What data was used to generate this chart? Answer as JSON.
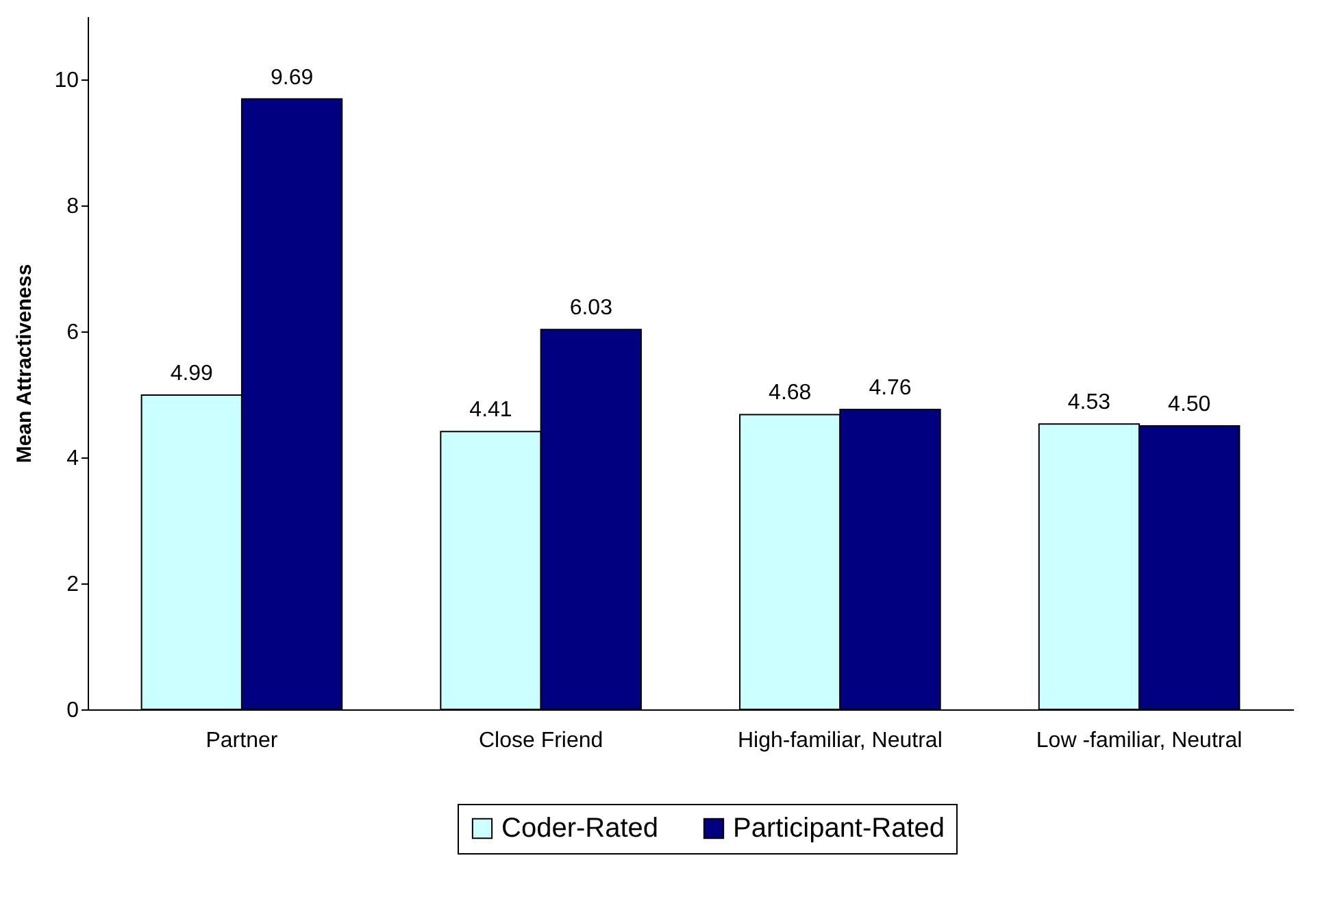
{
  "chart_data": {
    "type": "bar",
    "ylabel": "Mean Attractiveness",
    "categories": [
      "Partner",
      "Close Friend",
      "High-familiar, Neutral",
      "Low -familiar, Neutral"
    ],
    "series": [
      {
        "name": "Coder-Rated",
        "color": "#ccffff",
        "values": [
          4.99,
          4.41,
          4.68,
          4.53
        ],
        "value_labels": [
          "4.99",
          "4.41",
          "4.68",
          "4.53"
        ]
      },
      {
        "name": "Participant-Rated",
        "color": "#000080",
        "values": [
          9.69,
          6.03,
          4.76,
          4.5
        ],
        "value_labels": [
          "9.69",
          "6.03",
          "4.76",
          "4.50"
        ]
      }
    ],
    "ylim": [
      0,
      11
    ],
    "yticks": [
      0,
      2,
      4,
      6,
      8,
      10
    ],
    "grid": false,
    "legend": "bottom"
  }
}
